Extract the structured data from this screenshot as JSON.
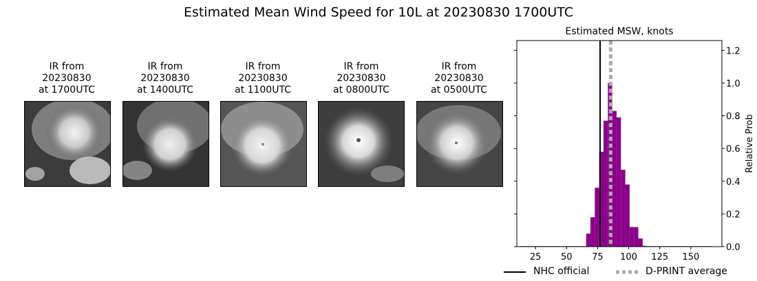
{
  "suptitle": "Estimated Mean Wind Speed for 10L at 20230830 1700UTC",
  "panels": [
    {
      "line1": "IR from",
      "line2": "20230830",
      "line3": "at 1700UTC",
      "thumb_icon": "satellite-ir-image"
    },
    {
      "line1": "IR from",
      "line2": "20230830",
      "line3": "at 1400UTC",
      "thumb_icon": "satellite-ir-image"
    },
    {
      "line1": "IR from",
      "line2": "20230830",
      "line3": "at 1100UTC",
      "thumb_icon": "satellite-ir-image"
    },
    {
      "line1": "IR from",
      "line2": "20230830",
      "line3": "at 0800UTC",
      "thumb_icon": "satellite-ir-image"
    },
    {
      "line1": "IR from",
      "line2": "20230830",
      "line3": "at 0500UTC",
      "thumb_icon": "satellite-ir-image"
    }
  ],
  "chart_data": {
    "type": "bar",
    "title": "Estimated MSW, knots",
    "xlabel": "",
    "ylabel": "Relative Prob",
    "xlim": [
      10,
      175
    ],
    "ylim": [
      0,
      1.26
    ],
    "xticks": [
      25,
      50,
      75,
      100,
      125,
      150
    ],
    "yticks": [
      0.0,
      0.2,
      0.4,
      0.6,
      0.8,
      1.0,
      1.2
    ],
    "ytick_labels": [
      "0.0",
      "0.2",
      "0.4",
      "0.6",
      "0.8",
      "1.0",
      "1.2"
    ],
    "y_axis_side": "right",
    "grid": false,
    "bar_color": "#8b008b",
    "bin_width": 3.5,
    "bins": [
      {
        "x": 15,
        "y": 0.003
      },
      {
        "x": 18.5,
        "y": 0.003
      },
      {
        "x": 22,
        "y": 0.003
      },
      {
        "x": 25.5,
        "y": 0.003
      },
      {
        "x": 29,
        "y": 0.003
      },
      {
        "x": 32.5,
        "y": 0.003
      },
      {
        "x": 36,
        "y": 0.003
      },
      {
        "x": 39.5,
        "y": 0.003
      },
      {
        "x": 43,
        "y": 0.003
      },
      {
        "x": 46.5,
        "y": 0.003
      },
      {
        "x": 50,
        "y": 0.003
      },
      {
        "x": 53.5,
        "y": 0.003
      },
      {
        "x": 57,
        "y": 0.003
      },
      {
        "x": 60.5,
        "y": 0.003
      },
      {
        "x": 64,
        "y": 0.003
      },
      {
        "x": 67.5,
        "y": 0.08
      },
      {
        "x": 71,
        "y": 0.18
      },
      {
        "x": 74.5,
        "y": 0.36
      },
      {
        "x": 78,
        "y": 0.58
      },
      {
        "x": 81.5,
        "y": 0.77
      },
      {
        "x": 85,
        "y": 1.0
      },
      {
        "x": 88.5,
        "y": 0.83
      },
      {
        "x": 92,
        "y": 0.79
      },
      {
        "x": 95.5,
        "y": 0.47
      },
      {
        "x": 99,
        "y": 0.38
      },
      {
        "x": 102.5,
        "y": 0.12
      },
      {
        "x": 106,
        "y": 0.12
      },
      {
        "x": 109.5,
        "y": 0.05
      },
      {
        "x": 113,
        "y": 0.005
      },
      {
        "x": 116.5,
        "y": 0.003
      },
      {
        "x": 120,
        "y": 0.003
      },
      {
        "x": 123.5,
        "y": 0.003
      },
      {
        "x": 127,
        "y": 0.003
      },
      {
        "x": 130.5,
        "y": 0.003
      },
      {
        "x": 134,
        "y": 0.003
      },
      {
        "x": 137.5,
        "y": 0.003
      },
      {
        "x": 141,
        "y": 0.003
      },
      {
        "x": 144.5,
        "y": 0.003
      },
      {
        "x": 148,
        "y": 0.003
      },
      {
        "x": 151.5,
        "y": 0.003
      },
      {
        "x": 155,
        "y": 0.003
      },
      {
        "x": 158.5,
        "y": 0.003
      },
      {
        "x": 162,
        "y": 0.003
      },
      {
        "x": 165.5,
        "y": 0.003
      }
    ],
    "lines": [
      {
        "name": "NHC official",
        "x": 77,
        "color": "#000000",
        "style": "solid"
      },
      {
        "name": "D-PRINT average",
        "x": 85.5,
        "color": "#aaaaaa",
        "style": "dotted"
      }
    ],
    "legend": "bottom"
  }
}
